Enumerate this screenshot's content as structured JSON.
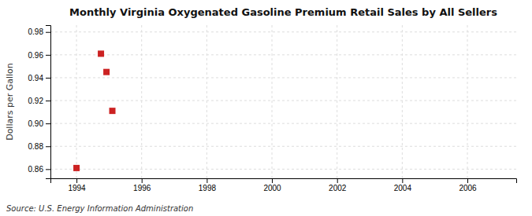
{
  "chart_data": {
    "type": "scatter",
    "title": "Monthly Virginia Oxygenated Gasoline Premium Retail Sales by All Sellers",
    "ylabel": "Dollars per Gallon",
    "annotations": [
      "Source: U.S. Energy Information Administration"
    ],
    "x": [
      1994.0,
      1994.75,
      1994.92,
      1995.1
    ],
    "values": [
      0.861,
      0.961,
      0.945,
      0.911
    ],
    "color": "#cc2222",
    "marker": "square",
    "xlim": [
      1993.2,
      2007.5
    ],
    "ylim": [
      0.852,
      0.986
    ],
    "xticks": [
      1994,
      1996,
      1998,
      2000,
      2002,
      2004,
      2006
    ],
    "yticks": [
      0.86,
      0.88,
      {
        "value": 0.9,
        "label": "0.90"
      },
      0.92,
      0.94,
      0.96,
      0.98
    ],
    "grid": true
  }
}
